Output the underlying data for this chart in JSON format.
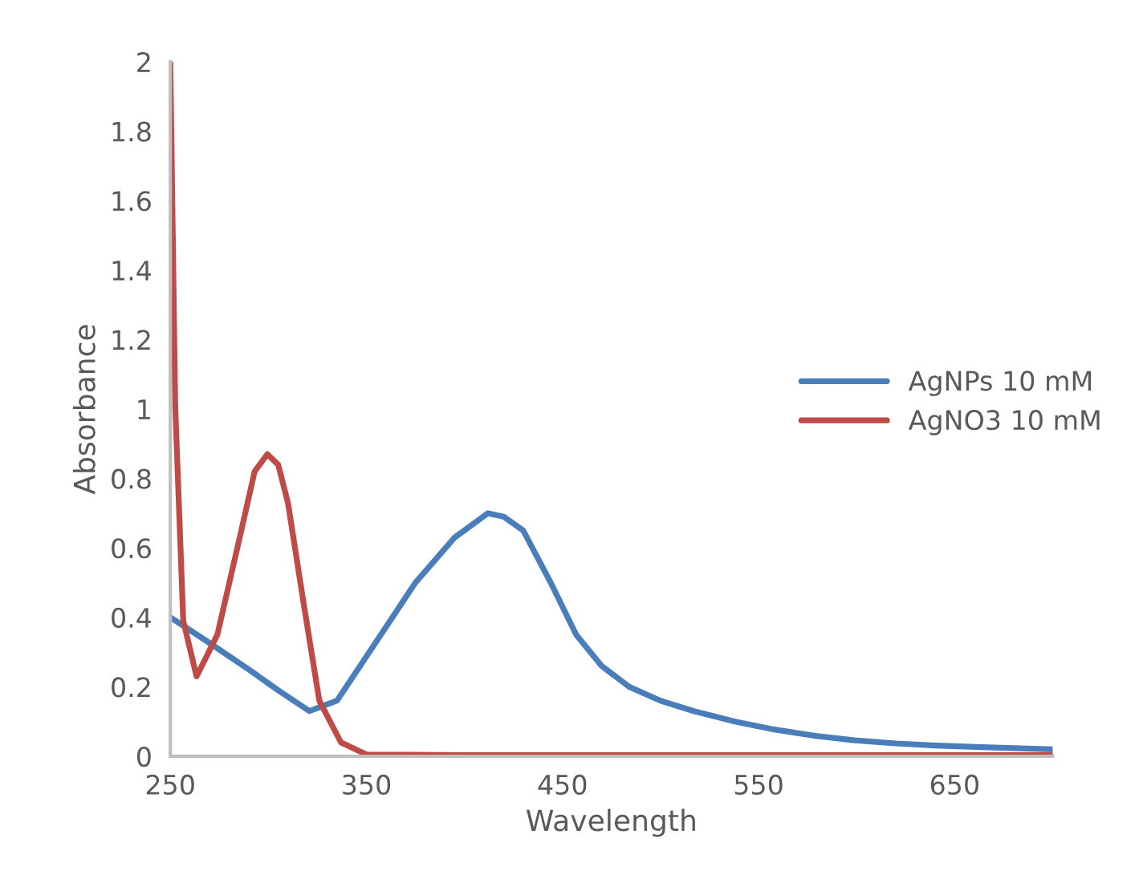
{
  "chart_data": {
    "type": "line",
    "xlabel": "Wavelength",
    "ylabel": "Absorbance",
    "xlim": [
      250,
      700
    ],
    "xticks": [
      250,
      350,
      450,
      550,
      650
    ],
    "ylim": [
      0,
      2
    ],
    "yticks": [
      0,
      0.2,
      0.4,
      0.6,
      0.8,
      1,
      1.2,
      1.4,
      1.6,
      1.8,
      2
    ],
    "grid": false,
    "legend": "right",
    "marker": "none",
    "line_style": "solid",
    "series": [
      {
        "name": "AgNPs 10 mM",
        "color": "#4a7ebb",
        "x": [
          250,
          269,
          290,
          305,
          321,
          335,
          348,
          375,
          395,
          412,
          420,
          430,
          444,
          457,
          470,
          484,
          500,
          517,
          538,
          558,
          580,
          599,
          620,
          640,
          670,
          700
        ],
        "values": [
          0.4,
          0.33,
          0.25,
          0.19,
          0.13,
          0.16,
          0.27,
          0.5,
          0.63,
          0.7,
          0.69,
          0.65,
          0.5,
          0.35,
          0.26,
          0.2,
          0.16,
          0.13,
          0.1,
          0.077,
          0.058,
          0.046,
          0.037,
          0.031,
          0.025,
          0.02
        ]
      },
      {
        "name": "AgNO3 10 mM",
        "color": "#be4b48",
        "x": [
          250,
          252.5,
          256.6,
          263.4,
          274,
          285,
          293,
          299.5,
          305,
          310,
          318,
          326,
          337,
          350,
          400,
          500,
          600,
          700
        ],
        "values": [
          2.0,
          1.01,
          0.39,
          0.23,
          0.35,
          0.62,
          0.82,
          0.87,
          0.84,
          0.73,
          0.44,
          0.16,
          0.04,
          0.005,
          0.003,
          0.003,
          0.003,
          0.003
        ]
      }
    ]
  }
}
